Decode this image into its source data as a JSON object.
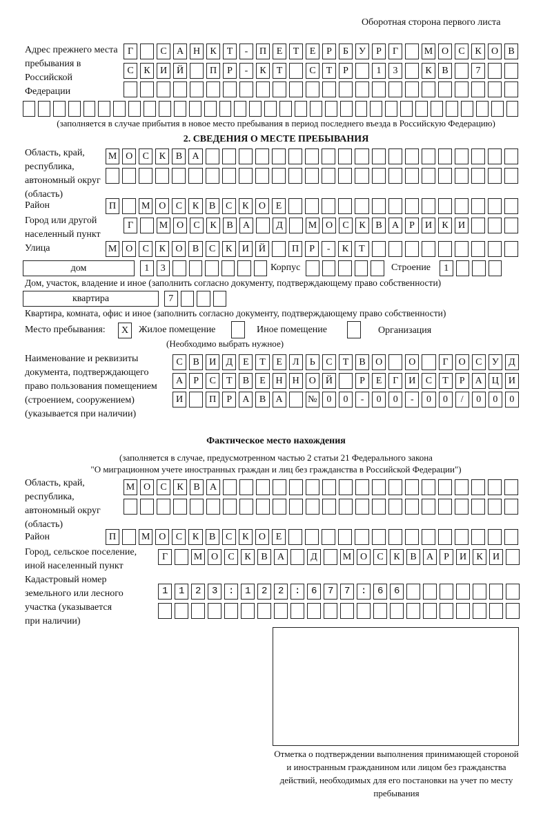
{
  "header": {
    "title": "Оборотная сторона первого листа"
  },
  "previous_address": {
    "label": "Адрес прежнего места пребывания в Российской Федерации",
    "rows": [
      "Г САНКТ-ПЕТЕРБУРГ МОСКОВ",
      "СКИЙ ПР-КТ СТР 13 КВ 7  ",
      "",
      ""
    ],
    "note": "(заполняется в случае прибытия в новое место пребывания в период последнего въезда в Российскую Федерацию)"
  },
  "section2": {
    "heading": "2. СВЕДЕНИЯ О МЕСТЕ ПРЕБЫВАНИЯ",
    "region_label": "Область, край, республика, автономный округ (область)",
    "region_rows": [
      "МОСКВА",
      ""
    ],
    "district_label": "Район",
    "district": "П МОСКВСКОЕ",
    "city_label": "Город или другой населенный пункт",
    "city": "Г МОСКВА Д МОСКВАРИКИ",
    "street_label": "Улица",
    "street": "МОСКОВСКИЙ ПР-КТ",
    "house_type": "дом",
    "house": "13",
    "korpus_label": "Корпус",
    "korpus": "",
    "building_label": "Строение",
    "building": "1",
    "house_note": "Дом, участок, владение и иное (заполнить согласно документу, подтверждающему право собственности)",
    "flat_type": "квартира",
    "flat": "7",
    "flat_note": "Квартира, комната, офис и иное (заполнить согласно документу, подтверждающему право собственности)",
    "place_label": "Место пребывания:",
    "place_options": [
      {
        "label": "Жилое помещение",
        "mark": "X"
      },
      {
        "label": "Иное помещение",
        "mark": ""
      },
      {
        "label": "Организация",
        "mark": ""
      }
    ],
    "place_note": "(Необходимо выбрать нужное)",
    "document_label": "Наименование и реквизиты документа, подтверждающего право пользования помещением (строением, сооружением) (указывается при наличии)",
    "document_rows": [
      "СВИДЕТЕЛЬСТВО О ГОСУД",
      "АРСТВЕННОЙ РЕГИСТРАЦИ",
      "И ПРАВА №00-00-00/000"
    ]
  },
  "actual": {
    "heading": "Фактическое место нахождения",
    "note1": "(заполняется в случае, предусмотренном частью 2 статьи 21 Федерального закона",
    "note2": "\"О миграционном учете иностранных граждан и лиц без гражданства в Российской Федерации\")",
    "region_label": "Область, край, республика, автономный округ (область)",
    "region_rows": [
      "МОСКВА",
      ""
    ],
    "district_label": "Район",
    "district": "П МОСКВСКОЕ",
    "city_label": "Город, сельское поселение, иной населенный пункт",
    "city": "Г МОСКВА Д МОСКВАРИКИ",
    "cadastre_label": "Кадастровый номер земельного или лесного участка (указывается при наличии)",
    "cadastre_rows": [
      "1123:122:677:66",
      ""
    ]
  },
  "stamp": {
    "caption": "Отметка о подтверждении выполнения принимающей стороной и иностранным гражданином или лицом без гражданства действий, необходимых для его постановки на учет по месту пребывания"
  }
}
